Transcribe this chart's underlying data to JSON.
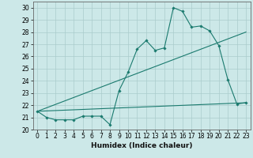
{
  "xlabel": "Humidex (Indice chaleur)",
  "bg_color": "#cce8e8",
  "grid_color": "#aacccc",
  "line_color": "#1a7a6e",
  "xlim": [
    -0.5,
    23.5
  ],
  "ylim": [
    20,
    30.5
  ],
  "xticks": [
    0,
    1,
    2,
    3,
    4,
    5,
    6,
    7,
    8,
    9,
    10,
    11,
    12,
    13,
    14,
    15,
    16,
    17,
    18,
    19,
    20,
    21,
    22,
    23
  ],
  "yticks": [
    20,
    21,
    22,
    23,
    24,
    25,
    26,
    27,
    28,
    29,
    30
  ],
  "line1_x": [
    0,
    1,
    2,
    3,
    4,
    5,
    6,
    7,
    8,
    9,
    10,
    11,
    12,
    13,
    14,
    15,
    16,
    17,
    18,
    19,
    20,
    21,
    22,
    23
  ],
  "line1_y": [
    21.5,
    21.0,
    20.8,
    20.8,
    20.8,
    21.1,
    21.1,
    21.1,
    20.4,
    23.2,
    24.7,
    26.6,
    27.3,
    26.5,
    26.7,
    30.0,
    29.7,
    28.4,
    28.5,
    28.1,
    26.9,
    24.1,
    22.1,
    22.2
  ],
  "line2_x": [
    0,
    23
  ],
  "line2_y": [
    21.5,
    28.0
  ],
  "line3_x": [
    0,
    23
  ],
  "line3_y": [
    21.5,
    22.2
  ],
  "xlabel_fontsize": 6.5,
  "tick_fontsize": 5.5
}
